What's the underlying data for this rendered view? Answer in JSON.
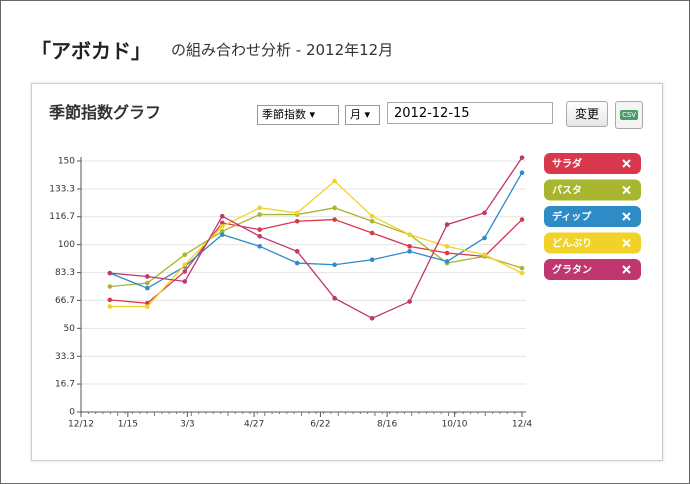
{
  "header": {
    "title": "「アボカド」",
    "subtitle": "の組み合わせ分析 - 2012年12月"
  },
  "panel": {
    "title": "季節指数グラフ",
    "select_index": "季節指数",
    "select_unit": "月",
    "date": "2012-12-15",
    "button": "変更",
    "csv": "CSV"
  },
  "chart_data": {
    "type": "line",
    "x": [
      0,
      1,
      2,
      3,
      4,
      5,
      6,
      7,
      8,
      9,
      10,
      11
    ],
    "xlim": [
      -0.77,
      11
    ],
    "xticks": [
      {
        "value": -0.77,
        "label": "12/12"
      },
      {
        "value": 0.48,
        "label": "1/15"
      },
      {
        "value": 2.07,
        "label": "3/3"
      },
      {
        "value": 3.85,
        "label": "4/27"
      },
      {
        "value": 5.62,
        "label": "6/22"
      },
      {
        "value": 7.4,
        "label": "8/16"
      },
      {
        "value": 9.2,
        "label": "10/10"
      },
      {
        "value": 11,
        "label": "12/4"
      }
    ],
    "ylim": [
      0,
      150
    ],
    "yticks": [
      0,
      16.7,
      33.3,
      50,
      66.7,
      83.3,
      100,
      116.7,
      133.3,
      150
    ],
    "grid": true,
    "series": [
      {
        "name": "サラダ",
        "color": "#d9374b",
        "values": [
          67,
          65,
          84,
          113,
          109,
          114,
          115,
          107,
          99,
          95,
          93,
          115
        ]
      },
      {
        "name": "パスタ",
        "color": "#a8b52e",
        "values": [
          75,
          77,
          94,
          108,
          118,
          118,
          122,
          114,
          106,
          89,
          93,
          86
        ]
      },
      {
        "name": "ディップ",
        "color": "#2e8bc6",
        "values": [
          83,
          74,
          87,
          106,
          99,
          89,
          88,
          91,
          96,
          90,
          104,
          143
        ]
      },
      {
        "name": "どんぶり",
        "color": "#f0d228",
        "values": [
          63,
          63,
          88,
          111,
          122,
          119,
          138,
          117,
          106,
          99,
          94,
          83
        ]
      },
      {
        "name": "グラタン",
        "color": "#c0366e",
        "values": [
          83,
          81,
          78,
          117,
          105,
          96,
          68,
          56,
          66,
          112,
          119,
          152
        ]
      }
    ]
  }
}
